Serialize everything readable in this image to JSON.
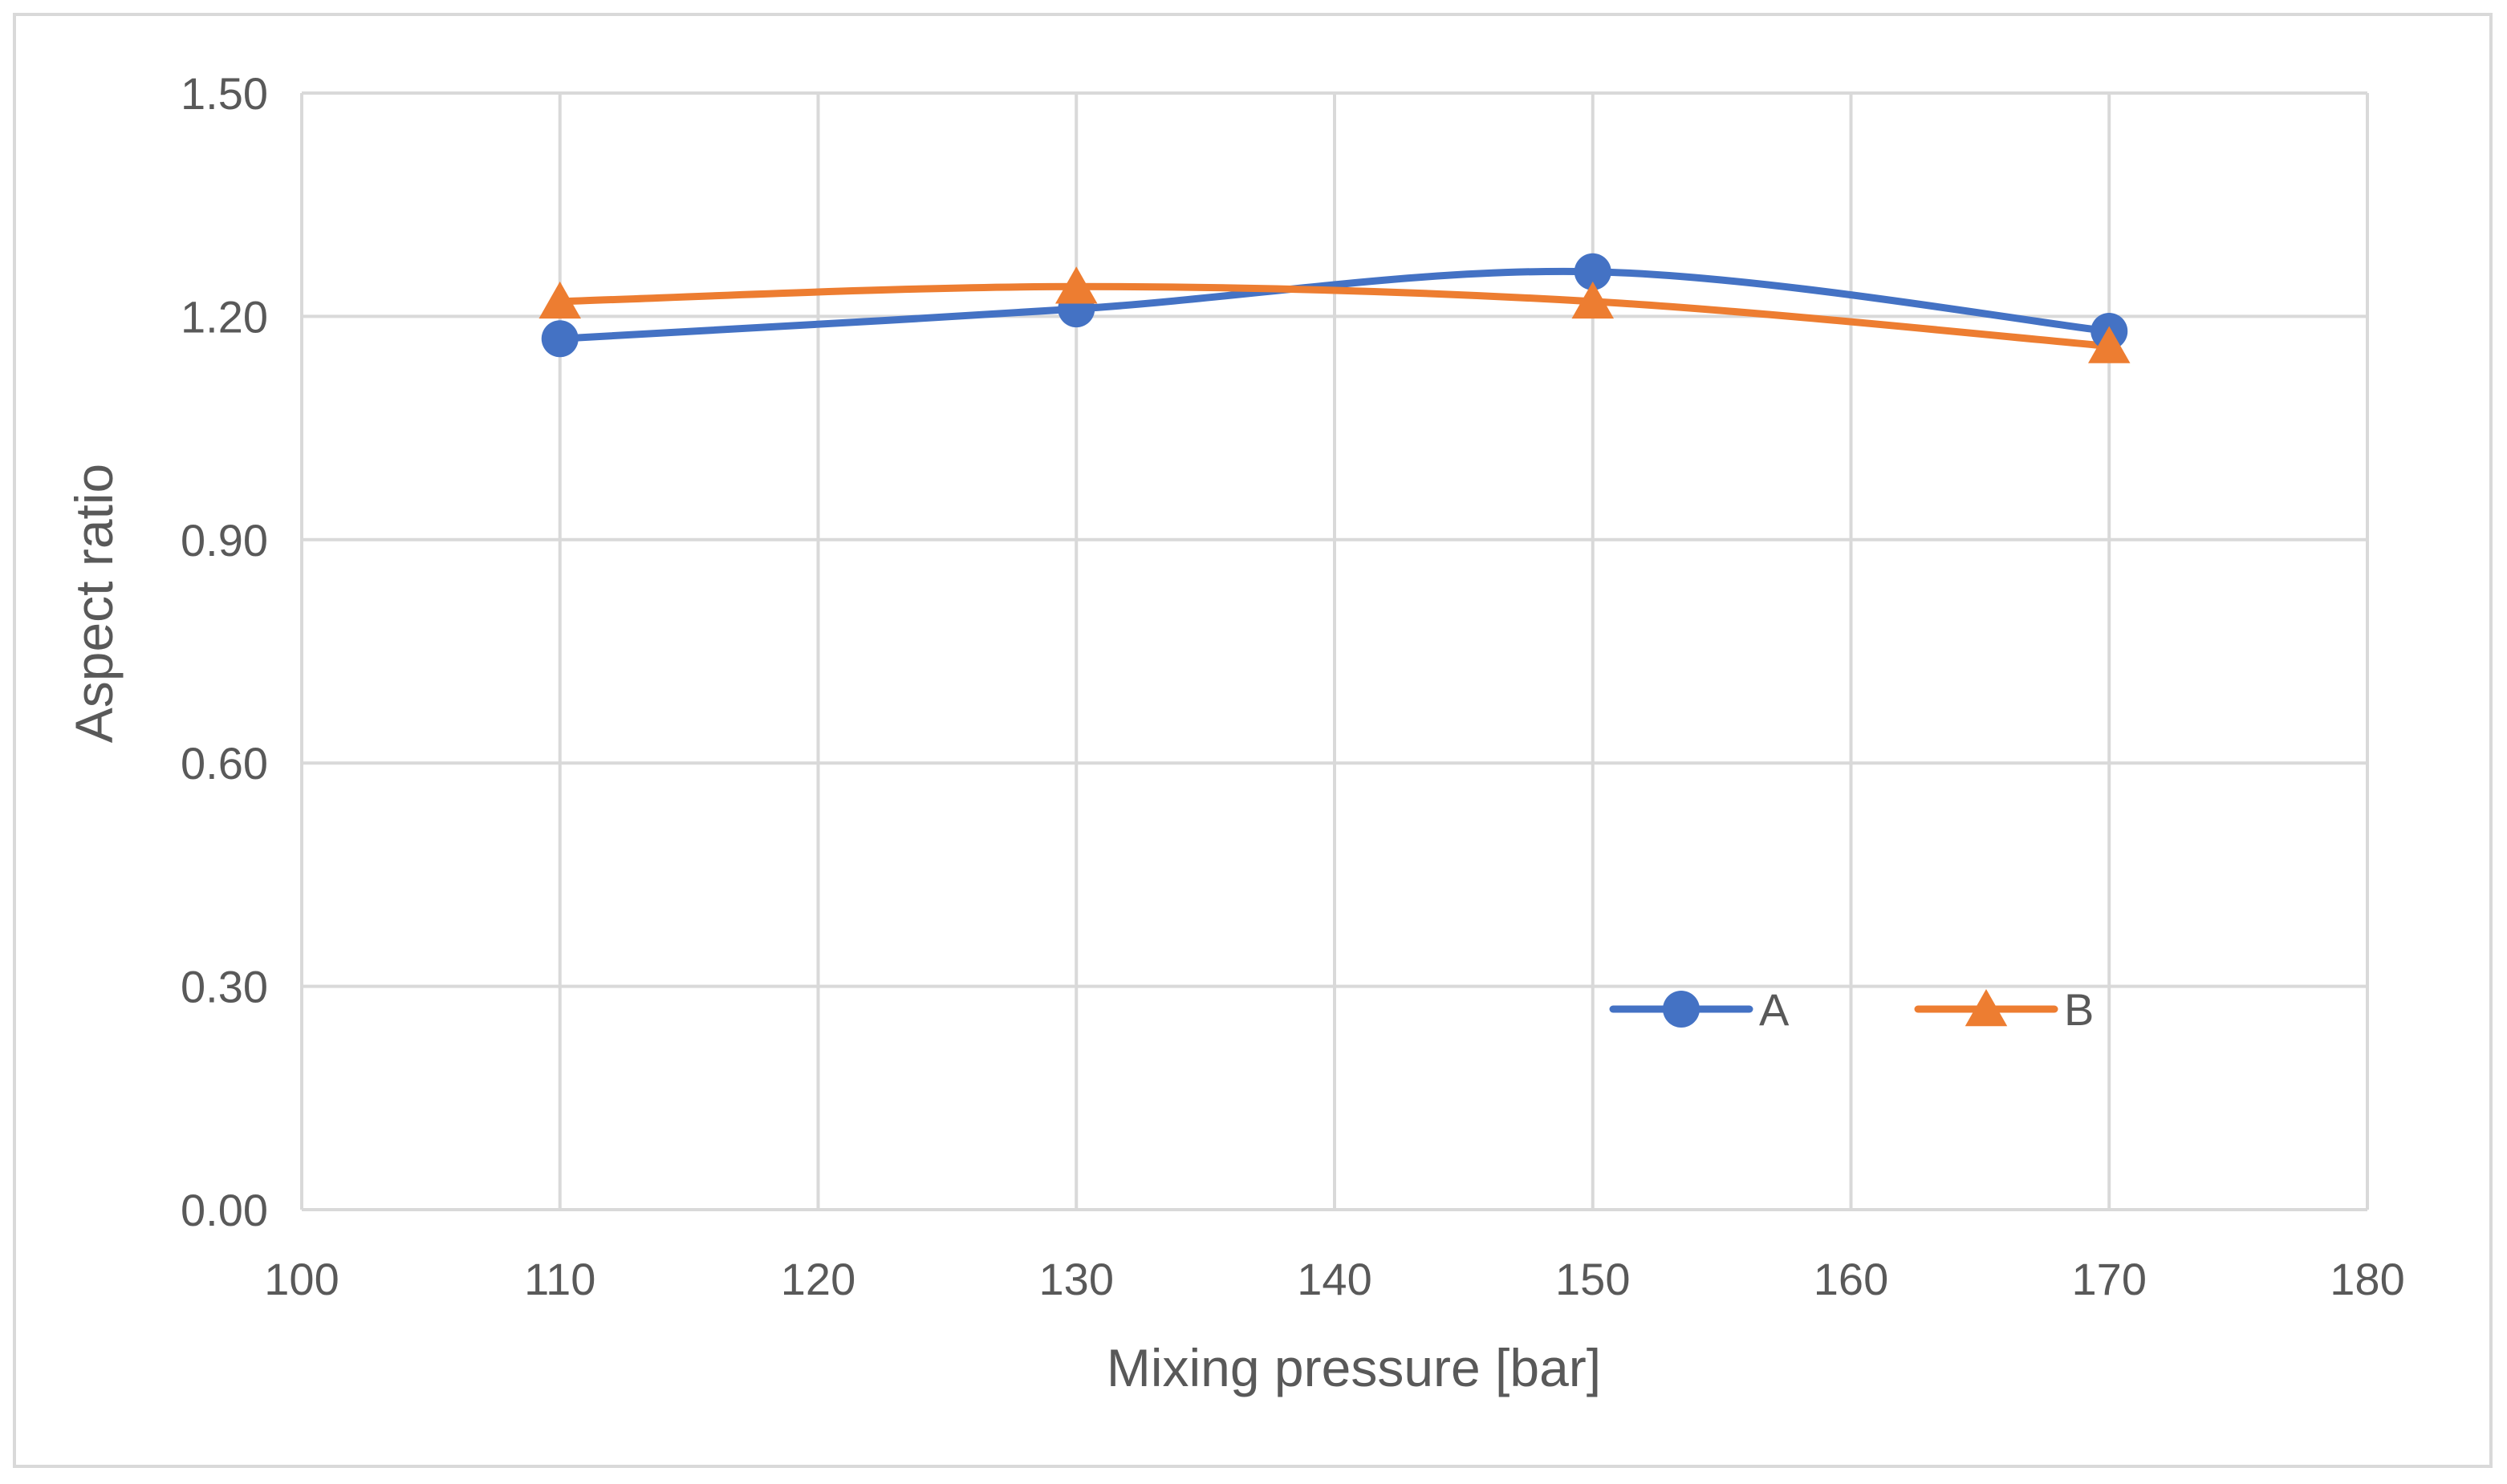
{
  "chart_data": {
    "type": "line",
    "title": "",
    "xlabel": "Mixing pressure [bar]",
    "ylabel": "Aspect ratio",
    "xlim": [
      100,
      180
    ],
    "ylim": [
      0,
      1.5
    ],
    "x_ticks": [
      "100",
      "110",
      "120",
      "130",
      "140",
      "150",
      "160",
      "170",
      "180"
    ],
    "y_ticks": [
      "0.00",
      "0.30",
      "0.60",
      "0.90",
      "1.20",
      "1.50"
    ],
    "grid": true,
    "smooth": true,
    "legend_position": "lower-right",
    "x": [
      110,
      130,
      150,
      170
    ],
    "series": [
      {
        "name": "A",
        "values": [
          1.17,
          1.21,
          1.26,
          1.18
        ],
        "color": "#4472c4",
        "marker": "circle"
      },
      {
        "name": "B",
        "values": [
          1.22,
          1.24,
          1.22,
          1.16
        ],
        "color": "#ed7d31",
        "marker": "triangle"
      }
    ]
  }
}
